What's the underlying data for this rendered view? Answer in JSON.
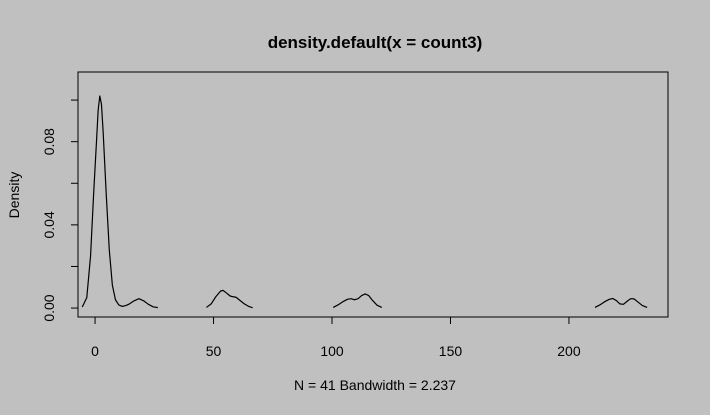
{
  "chart_data": {
    "type": "line",
    "title": "density.default(x = count3)",
    "xlabel": "N = 41   Bandwidth = 2.237",
    "ylabel": "Density",
    "xlim": [
      -7.2,
      241.8
    ],
    "ylim": [
      -0.0043,
      0.1135
    ],
    "x_ticks": [
      0,
      50,
      100,
      150,
      200
    ],
    "x_tick_labels": [
      "0",
      "50",
      "100",
      "150",
      "200"
    ],
    "y_ticks": [
      0.0,
      0.02,
      0.04,
      0.06,
      0.08,
      0.1
    ],
    "y_tick_labels": [
      "0.00",
      "",
      "0.04",
      "",
      "0.08",
      ""
    ],
    "grid": false,
    "series": [
      {
        "color": "#000000",
        "x": [
          -5.4,
          -3.5,
          -1.9,
          -0.6,
          0.6,
          1.3,
          2.0,
          2.7,
          3.4,
          4.7,
          6.0,
          7.3,
          8.6,
          10.0,
          11.5,
          13.0,
          14.5,
          16.5,
          18.5,
          20.5,
          22.5,
          24.5,
          26.5
        ],
        "y": [
          0.0005,
          0.005,
          0.025,
          0.055,
          0.08,
          0.095,
          0.102,
          0.098,
          0.085,
          0.055,
          0.028,
          0.011,
          0.004,
          0.0015,
          0.0008,
          0.0012,
          0.002,
          0.0035,
          0.0045,
          0.0035,
          0.0018,
          0.0006,
          0.0002
        ]
      },
      {
        "color": "#000000",
        "x": [
          47.0,
          49.0,
          51.0,
          53.0,
          54.0,
          55.5,
          57.0,
          58.0,
          59.5,
          61.0,
          63.0,
          65.0,
          66.5
        ],
        "y": [
          0.0003,
          0.002,
          0.0055,
          0.0082,
          0.0085,
          0.0072,
          0.0058,
          0.0055,
          0.0052,
          0.0038,
          0.002,
          0.0007,
          0.0002
        ]
      },
      {
        "color": "#000000",
        "x": [
          100.5,
          102.5,
          104.5,
          106.5,
          108.0,
          109.5,
          111.0,
          112.5,
          114.0,
          115.5,
          117.0,
          119.0,
          121.0
        ],
        "y": [
          0.0003,
          0.0015,
          0.003,
          0.0042,
          0.0045,
          0.004,
          0.0045,
          0.006,
          0.0068,
          0.006,
          0.0038,
          0.0014,
          0.0003
        ]
      },
      {
        "color": "#000000",
        "x": [
          211.0,
          213.0,
          215.0,
          217.0,
          218.5,
          220.0,
          221.5,
          223.0,
          224.5,
          226.0,
          227.5,
          229.0,
          231.0,
          233.0
        ],
        "y": [
          0.0003,
          0.0015,
          0.003,
          0.0042,
          0.0046,
          0.0036,
          0.002,
          0.0018,
          0.0032,
          0.0045,
          0.0044,
          0.003,
          0.0012,
          0.0003
        ]
      }
    ]
  }
}
